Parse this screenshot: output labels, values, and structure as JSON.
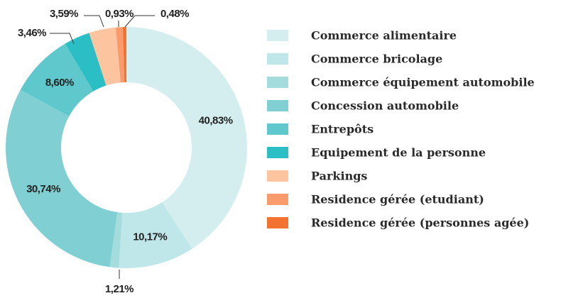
{
  "chart_data": {
    "type": "donut",
    "categories": [
      "Commerce alimentaire",
      "Commerce bricolage",
      "Commerce équipement automobile",
      "Concession automobile",
      "Entrepôts",
      "Equipement de la personne",
      "Parkings",
      "Residence gérée (etudiant)",
      "Residence gérée (personnes agée)"
    ],
    "values": [
      40.83,
      10.17,
      1.21,
      30.74,
      8.6,
      3.46,
      3.59,
      0.93,
      0.48
    ],
    "value_labels": [
      "40,83%",
      "10,17%",
      "1,21%",
      "30,74%",
      "8,60%",
      "3,46%",
      "3,59%",
      "0,93%",
      "0,48%"
    ],
    "colors": [
      "#d4eef0",
      "#bfe6e8",
      "#a4dcde",
      "#80d0d3",
      "#5ec8cc",
      "#2bbfc5",
      "#fdc4a0",
      "#f99b6d",
      "#f3722f"
    ],
    "legend": "right"
  }
}
